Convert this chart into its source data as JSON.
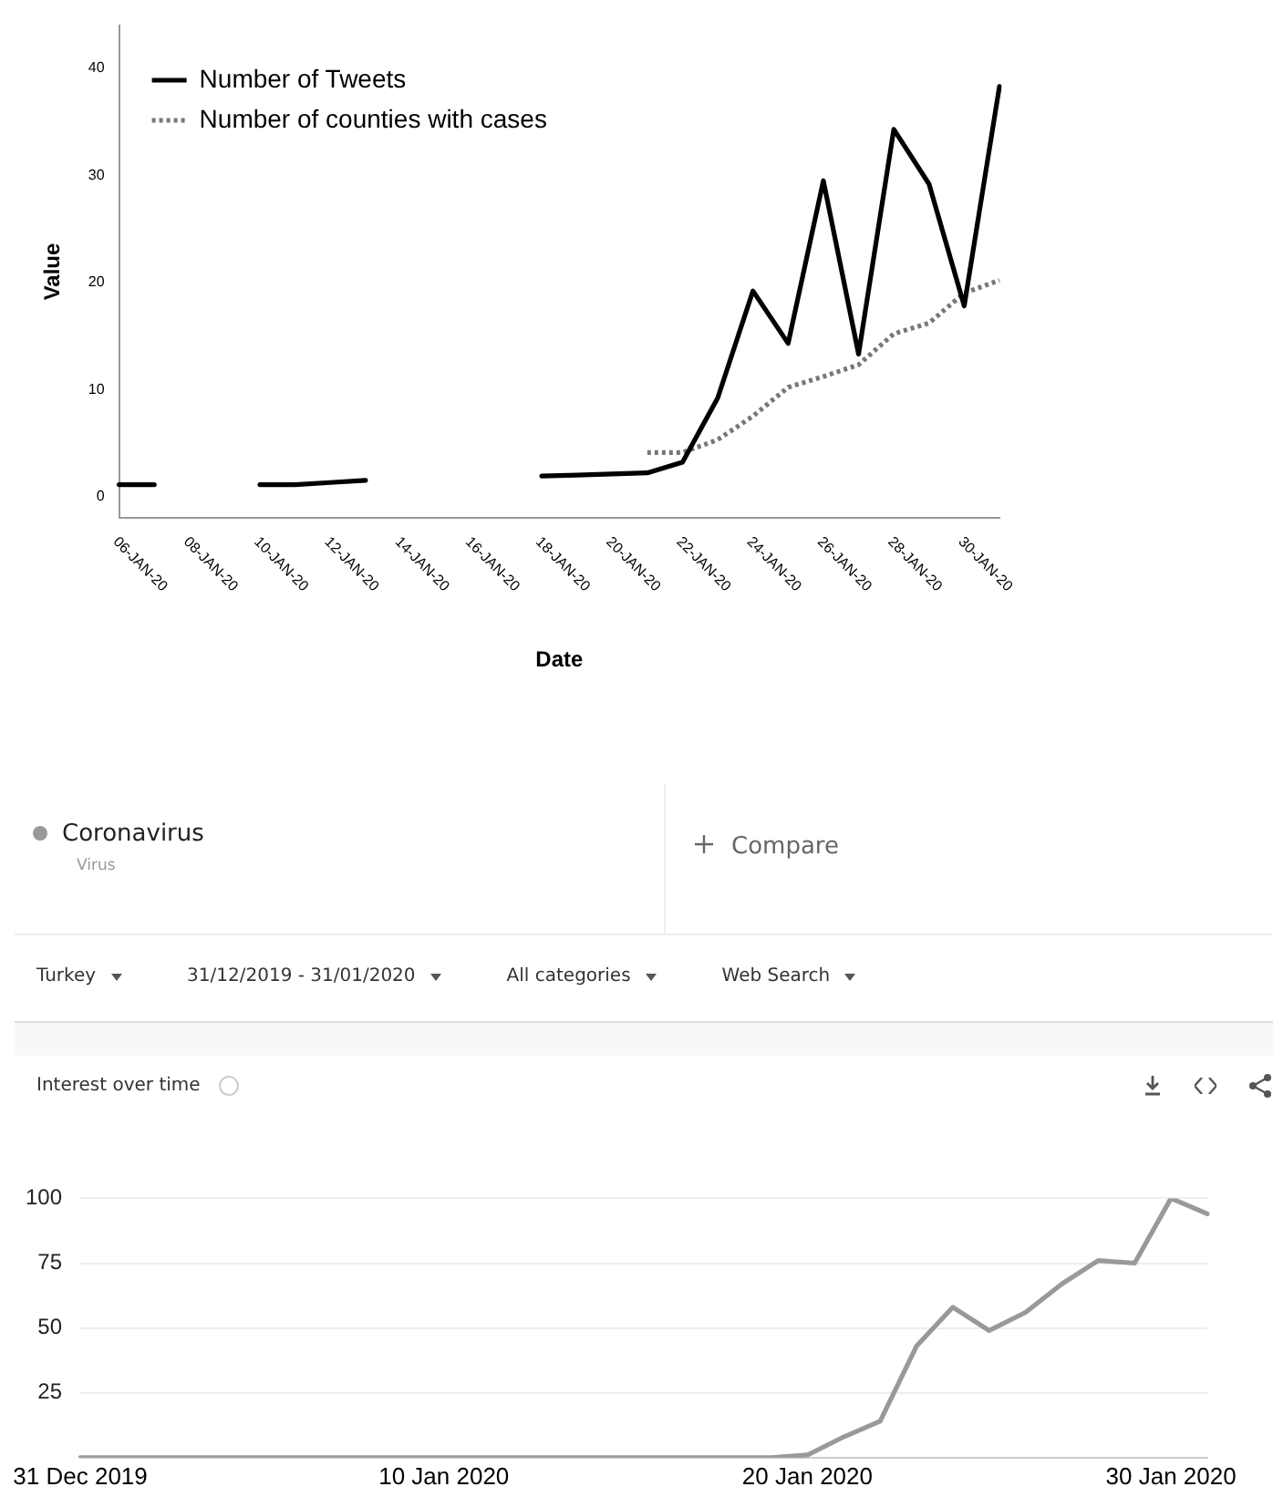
{
  "chart_data": [
    {
      "type": "line",
      "xlabel": "Date",
      "ylabel": "Value",
      "categories": [
        "06-JAN-20",
        null,
        "08-JAN-20",
        null,
        "10-JAN-20",
        null,
        "12-JAN-20",
        null,
        "14-JAN-20",
        null,
        "16-JAN-20",
        null,
        "18-JAN-20",
        null,
        "20-JAN-20",
        null,
        "22-JAN-20",
        null,
        "24-JAN-20",
        null,
        "26-JAN-20",
        null,
        "28-JAN-20",
        null,
        "30-JAN-20",
        null
      ],
      "series": [
        {
          "name": "Number of Tweets",
          "color": "#000000",
          "line_style": "solid",
          "values": [
            1.1,
            1.1,
            null,
            null,
            1.1,
            1.1,
            1.3,
            1.5,
            null,
            null,
            null,
            null,
            1.9,
            2.0,
            2.1,
            2.2,
            3.2,
            9.2,
            19.2,
            14.3,
            29.5,
            13.3,
            34.3,
            29.2,
            17.8,
            38.3
          ]
        },
        {
          "name": "Number of counties with cases",
          "color": "#777777",
          "line_style": "dotted",
          "values": [
            null,
            null,
            null,
            null,
            null,
            null,
            null,
            null,
            null,
            null,
            null,
            null,
            null,
            null,
            null,
            4.1,
            4.1,
            5.3,
            7.5,
            10.2,
            11.2,
            12.3,
            15.2,
            16.2,
            19.0,
            20.2
          ]
        }
      ],
      "ylim": [
        -2,
        44
      ],
      "yticks": [
        0,
        10,
        20,
        30,
        40
      ],
      "grid": false,
      "legend": "top left",
      "marker": "none"
    },
    {
      "type": "line",
      "title": "Interest over time",
      "categories": [
        "31 Dec 2019",
        null,
        null,
        null,
        null,
        null,
        null,
        null,
        null,
        null,
        "10 Jan 2020",
        null,
        null,
        null,
        null,
        null,
        null,
        null,
        null,
        null,
        "20 Jan 2020",
        null,
        null,
        null,
        null,
        null,
        null,
        null,
        null,
        null,
        "30 Jan 2020",
        null
      ],
      "series": [
        {
          "name": "Coronavirus",
          "color": "#999999",
          "values": [
            0,
            0,
            0,
            0,
            0,
            0,
            0,
            0,
            0,
            0,
            0,
            0,
            0,
            0,
            0,
            0,
            0,
            0,
            0,
            0,
            1,
            8,
            14,
            43,
            58,
            49,
            56,
            67,
            76,
            75,
            100,
            94
          ]
        }
      ],
      "ylim": [
        0,
        100
      ],
      "yticks": [
        {
          "value": 0,
          "label": null
        },
        25,
        50,
        75,
        100
      ],
      "grid": "y",
      "legend": "top left",
      "marker": "none",
      "annotations": [
        "Virus",
        "Compare",
        "Turkey",
        "31/12/2019 - 31/01/2020",
        "All categories",
        "Web Search"
      ]
    }
  ]
}
